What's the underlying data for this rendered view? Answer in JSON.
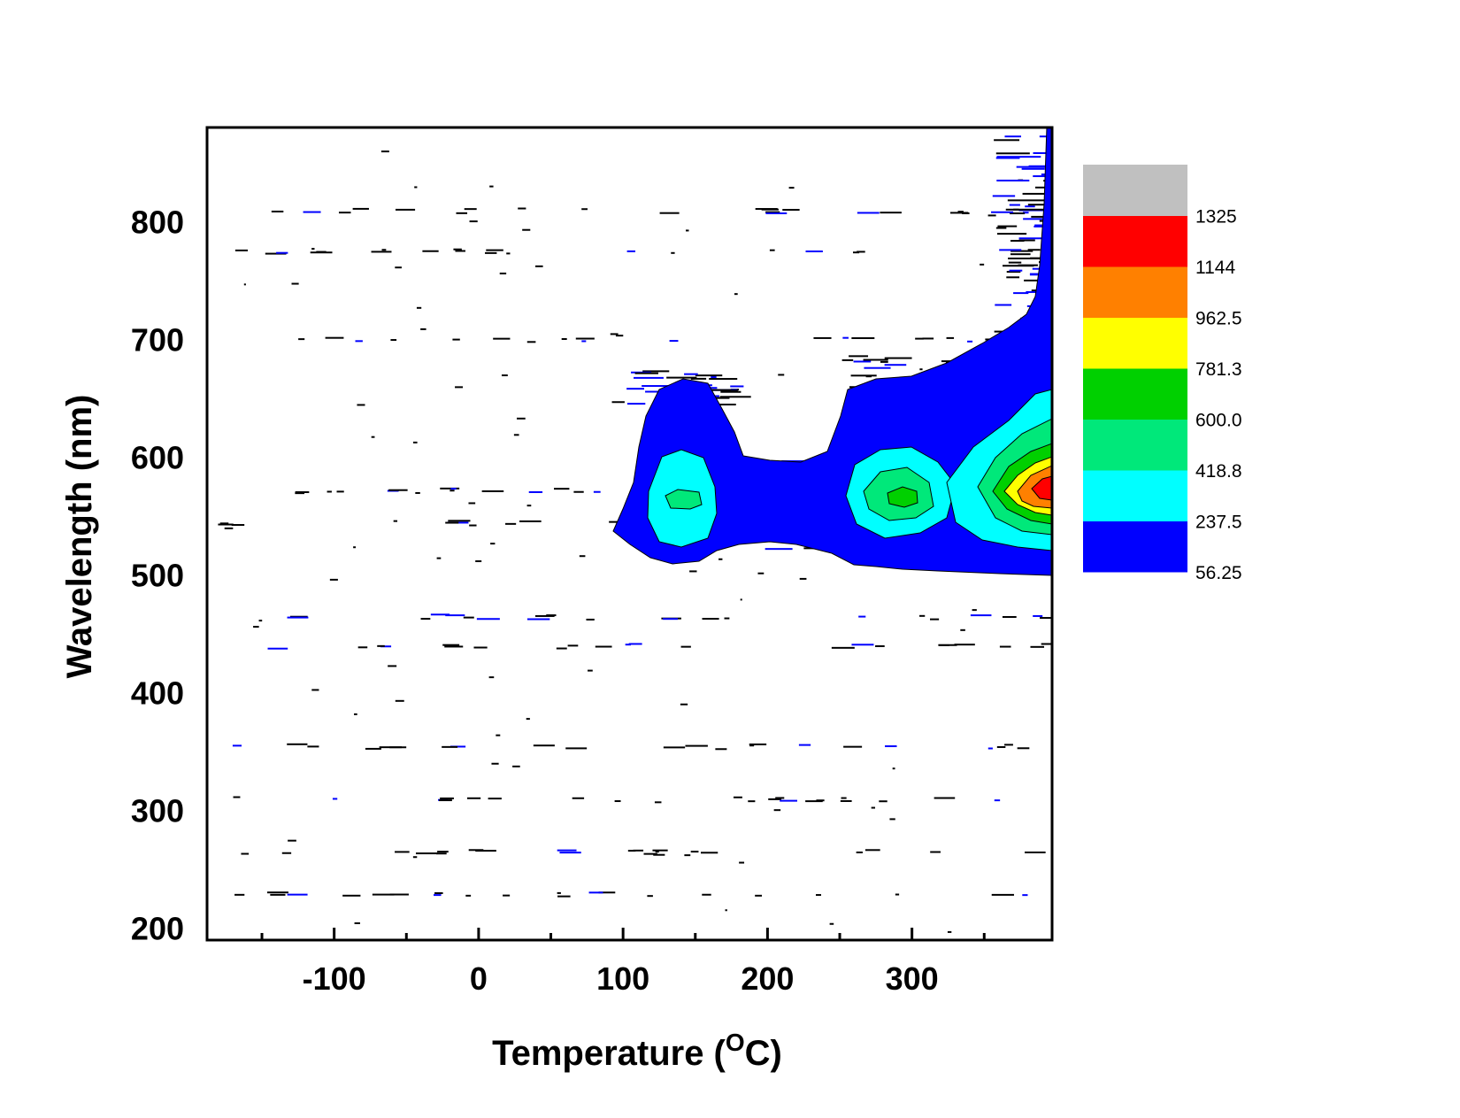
{
  "chart_data": {
    "type": "heatmap",
    "subtype": "filled-contour",
    "title": "",
    "xlabel": {
      "prefix": "Temperature (",
      "sup": "O",
      "suffix": "C)"
    },
    "ylabel": "Wavelength (nm)",
    "xlim": [
      -188,
      397
    ],
    "ylim": [
      190,
      880
    ],
    "x_ticks_major": [
      -100,
      0,
      100,
      200,
      300
    ],
    "x_ticks_minor": [
      -150,
      -50,
      50,
      150,
      250,
      350
    ],
    "y_ticks_major": [
      200,
      300,
      400,
      500,
      600,
      700,
      800
    ],
    "grid": false,
    "colorbar": {
      "placement": "right",
      "levels": [
        "56.25",
        "237.5",
        "418.8",
        "600.0",
        "781.3",
        "962.5",
        "1144",
        "1325"
      ],
      "colors": [
        "#0000ff",
        "#00ffff",
        "#00e87a",
        "#00d000",
        "#ffff00",
        "#ff8000",
        "#ff0000",
        "#c0c0c0"
      ]
    },
    "features": [
      {
        "center_x": 143,
        "center_y": 560,
        "peak_level": "418.8"
      },
      {
        "center_x": 290,
        "center_y": 570,
        "peak_level": "600.0"
      },
      {
        "center_x": 390,
        "center_y": 580,
        "peak_level": "1144"
      }
    ],
    "noise_lines_y": [
      230,
      265,
      310,
      355,
      440,
      465,
      545,
      572,
      700,
      775,
      810
    ]
  }
}
